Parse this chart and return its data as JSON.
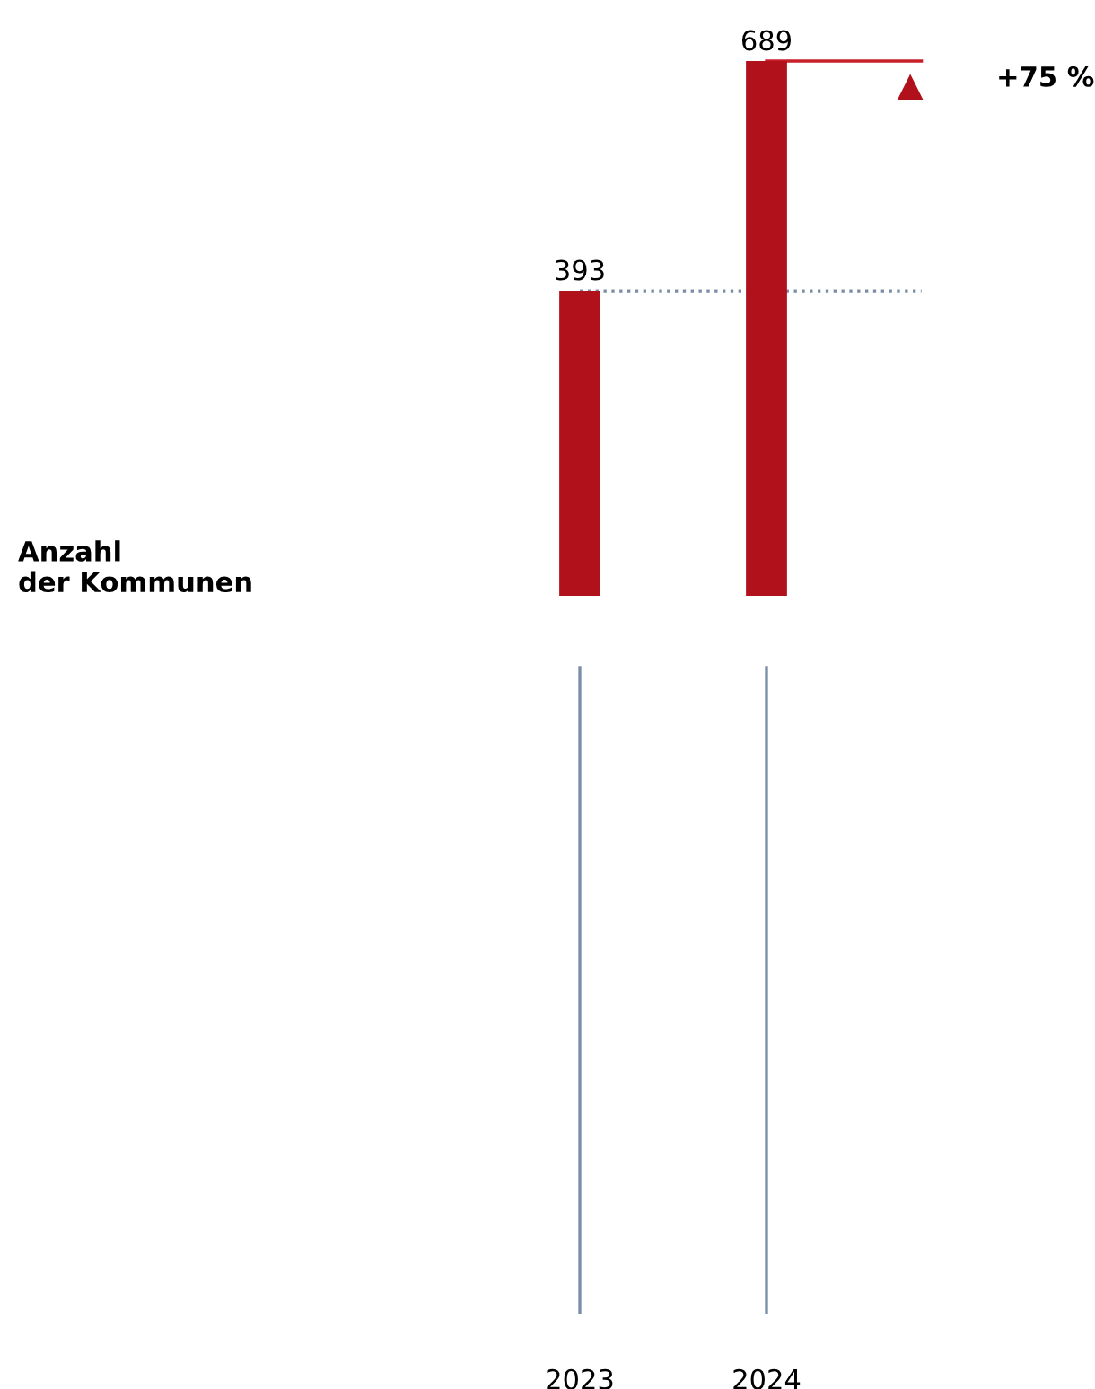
{
  "chart_data": {
    "type": "bar",
    "categories": [
      "2023",
      "2024"
    ],
    "values": [
      393,
      689
    ],
    "color": "#b0111a",
    "data_labels": true,
    "ref_lines": [
      {
        "axis": "y",
        "value": 393,
        "color": "#7a8fa6",
        "line_style": "dotted"
      },
      {
        "axis": "y",
        "value": 689,
        "color": "#c8202a",
        "line_style": "solid"
      }
    ],
    "annotations": [
      "+75 %",
      "Anzahl\nder Kommunen"
    ]
  }
}
